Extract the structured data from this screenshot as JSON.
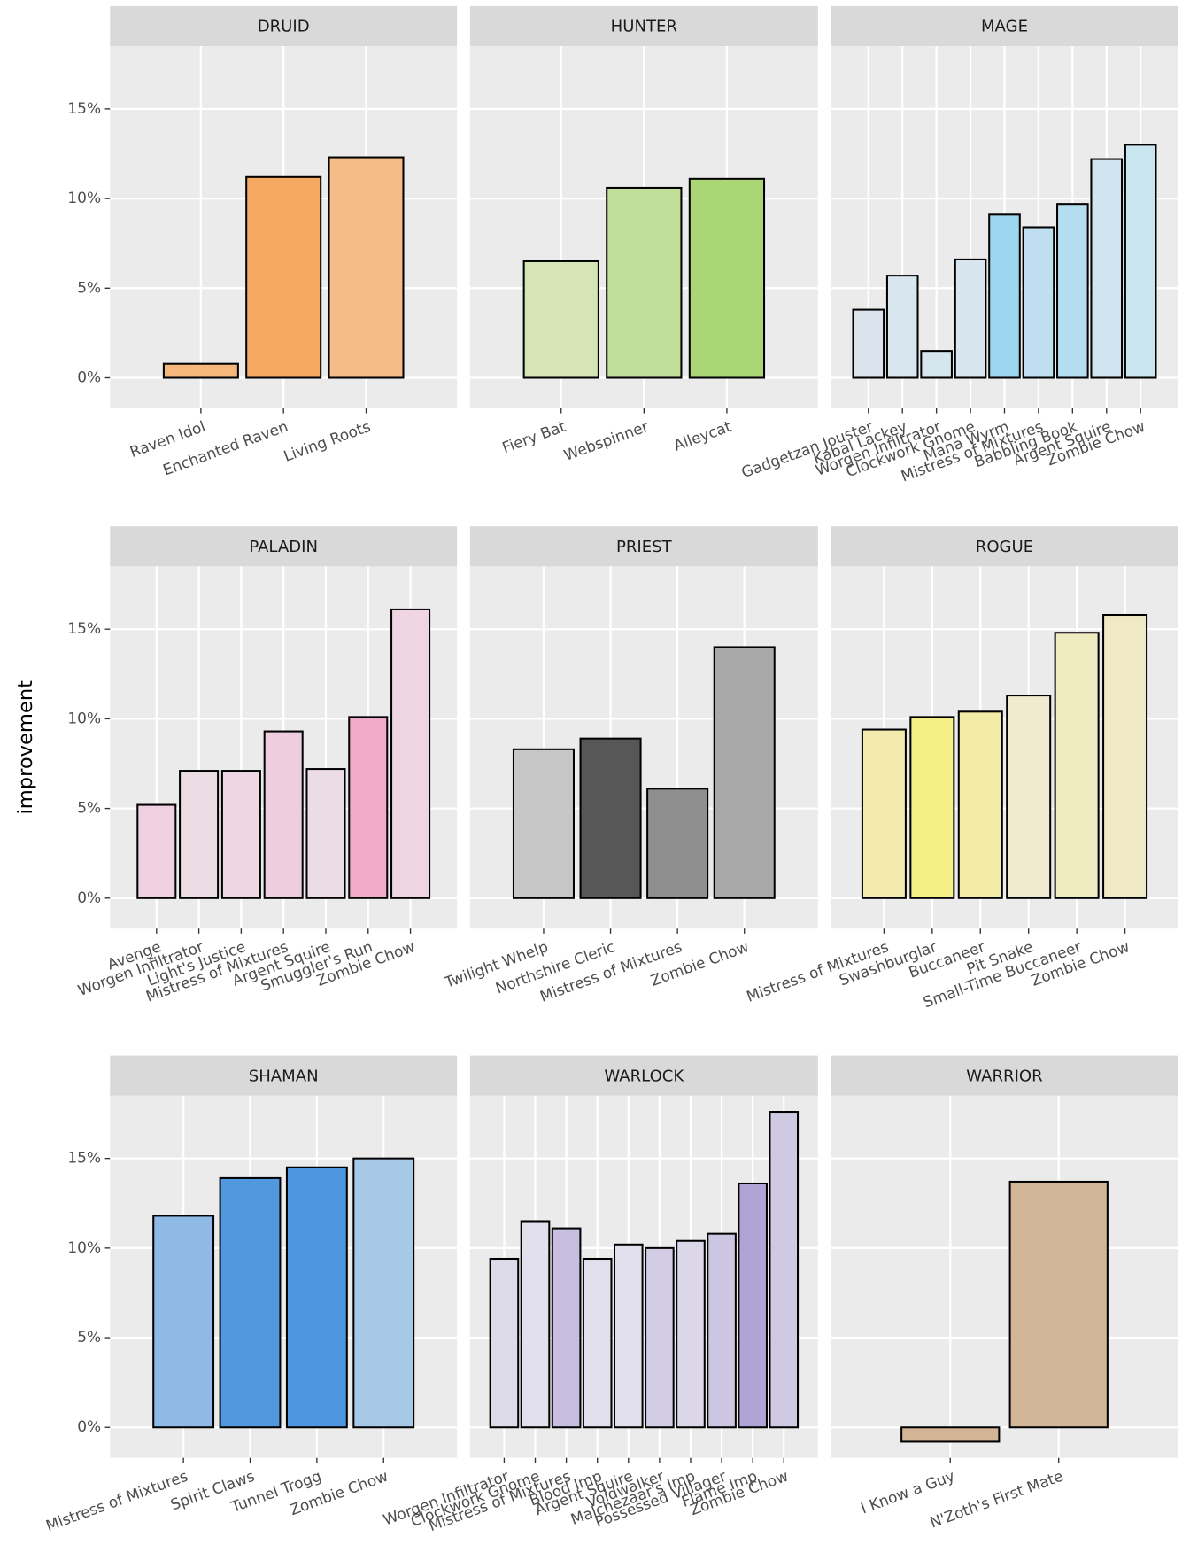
{
  "chart_data": [
    {
      "type": "bar",
      "title": "DRUID",
      "categories": [
        "Raven Idol",
        "Enchanted Raven",
        "Living Roots"
      ],
      "values": [
        0.78,
        11.2,
        12.3
      ],
      "colors": [
        "#f5b77c",
        "#f5a862",
        "#f4bc87"
      ],
      "ylim": [
        -1.7,
        18.5
      ],
      "yticks": [
        {
          "value": 0,
          "label": "0%"
        },
        {
          "value": 5,
          "label": "5%"
        },
        {
          "value": 10,
          "label": "10%"
        },
        {
          "value": 15,
          "label": "15%"
        }
      ],
      "grid": true
    },
    {
      "type": "bar",
      "title": "HUNTER",
      "categories": [
        "Fiery Bat",
        "Webspinner",
        "Alleycat"
      ],
      "values": [
        6.5,
        10.6,
        11.1
      ],
      "colors": [
        "#d6e5b6",
        "#c2df99",
        "#abd675"
      ],
      "ylim": [
        -1.7,
        18.5
      ],
      "yticks": [
        {
          "value": 0,
          "label": "0%"
        },
        {
          "value": 5,
          "label": "5%"
        },
        {
          "value": 10,
          "label": "10%"
        },
        {
          "value": 15,
          "label": "15%"
        }
      ],
      "grid": true
    },
    {
      "type": "bar",
      "title": "MAGE",
      "categories": [
        "Gadgetzan Jouster",
        "Kabal Lackey",
        "Worgen Infiltrator",
        "Clockwork Gnome",
        "Mana Wyrm",
        "Mistress of Mixtures",
        "Babbling Book",
        "Argent Squire",
        "Zombie Chow"
      ],
      "values": [
        3.8,
        5.7,
        1.5,
        6.6,
        9.1,
        8.4,
        9.7,
        12.2,
        13.0
      ],
      "colors": [
        "#dbe4ec",
        "#d8e6ee",
        "#d6e6ef",
        "#d7e6ee",
        "#9dd6ef",
        "#bfdff0",
        "#b5ddf0",
        "#cfe6f0",
        "#c8e5f0"
      ],
      "ylim": [
        -1.7,
        18.5
      ],
      "yticks": [
        {
          "value": 0,
          "label": "0%"
        },
        {
          "value": 5,
          "label": "5%"
        },
        {
          "value": 10,
          "label": "10%"
        },
        {
          "value": 15,
          "label": "15%"
        }
      ],
      "grid": true
    },
    {
      "type": "bar",
      "title": "PALADIN",
      "ylabel": "improvement",
      "categories": [
        "Avenge",
        "Worgen Infiltrator",
        "Light's Justice",
        "Mistress of Mixtures",
        "Argent Squire",
        "Smuggler's Run",
        "Zombie Chow"
      ],
      "values": [
        5.2,
        7.1,
        7.1,
        9.3,
        7.2,
        10.1,
        16.1
      ],
      "colors": [
        "#efcfe0",
        "#ecdde5",
        "#eed6e3",
        "#efcde0",
        "#ecdce5",
        "#f0abcb",
        "#efd4e2"
      ],
      "ylim": [
        -1.7,
        18.5
      ],
      "yticks": [
        {
          "value": 0,
          "label": "0%"
        },
        {
          "value": 5,
          "label": "5%"
        },
        {
          "value": 10,
          "label": "10%"
        },
        {
          "value": 15,
          "label": "15%"
        }
      ],
      "grid": true
    },
    {
      "type": "bar",
      "title": "PRIEST",
      "categories": [
        "Twilight Whelp",
        "Northshire Cleric",
        "Mistress of Mixtures",
        "Zombie Chow"
      ],
      "values": [
        8.3,
        8.9,
        6.1,
        14.0
      ],
      "colors": [
        "#c6c6c6",
        "#575757",
        "#8f8f8f",
        "#a8a8a8"
      ],
      "ylim": [
        -1.7,
        18.5
      ],
      "yticks": [
        {
          "value": 0,
          "label": "0%"
        },
        {
          "value": 5,
          "label": "5%"
        },
        {
          "value": 10,
          "label": "10%"
        },
        {
          "value": 15,
          "label": "15%"
        }
      ],
      "grid": true
    },
    {
      "type": "bar",
      "title": "ROGUE",
      "categories": [
        "Mistress of Mixtures",
        "Swashburglar",
        "Buccaneer",
        "Pit Snake",
        "Small-Time Buccaneer",
        "Zombie Chow"
      ],
      "values": [
        9.4,
        10.1,
        10.4,
        11.3,
        14.8,
        15.8
      ],
      "colors": [
        "#f3eaad",
        "#f5ef88",
        "#f3eca6",
        "#efead0",
        "#efebc0",
        "#efe9c5"
      ],
      "ylim": [
        -1.7,
        18.5
      ],
      "yticks": [
        {
          "value": 0,
          "label": "0%"
        },
        {
          "value": 5,
          "label": "5%"
        },
        {
          "value": 10,
          "label": "10%"
        },
        {
          "value": 15,
          "label": "15%"
        }
      ],
      "grid": true
    },
    {
      "type": "bar",
      "title": "SHAMAN",
      "categories": [
        "Mistress of Mixtures",
        "Spirit Claws",
        "Tunnel Trogg",
        "Zombie Chow"
      ],
      "values": [
        11.8,
        13.9,
        14.5,
        15.0
      ],
      "colors": [
        "#8fb9e6",
        "#5298df",
        "#4e97e0",
        "#a8c8e8"
      ],
      "ylim": [
        -1.7,
        18.5
      ],
      "yticks": [
        {
          "value": 0,
          "label": "0%"
        },
        {
          "value": 5,
          "label": "5%"
        },
        {
          "value": 10,
          "label": "10%"
        },
        {
          "value": 15,
          "label": "15%"
        }
      ],
      "grid": true
    },
    {
      "type": "bar",
      "title": "WARLOCK",
      "categories": [
        "Worgen Infiltrator",
        "Clockwork Gnome",
        "Mistress of Mixtures",
        "Blood Imp",
        "Argent Squire",
        "Voidwalker",
        "Malchezaar's Imp",
        "Possessed Villager",
        "Flame Imp",
        "Zombie Chow"
      ],
      "values": [
        9.4,
        11.5,
        11.1,
        9.4,
        10.2,
        10.0,
        10.4,
        10.8,
        13.6,
        17.6
      ],
      "colors": [
        "#dedbe9",
        "#e2e0ec",
        "#c8bfe0",
        "#e1dfeb",
        "#e2e0ec",
        "#d3cce5",
        "#dbd7e9",
        "#cdc6e3",
        "#b0a4d6",
        "#cfc9e4"
      ],
      "ylim": [
        -1.7,
        18.5
      ],
      "yticks": [
        {
          "value": 0,
          "label": "0%"
        },
        {
          "value": 5,
          "label": "5%"
        },
        {
          "value": 10,
          "label": "10%"
        },
        {
          "value": 15,
          "label": "15%"
        }
      ],
      "grid": true
    },
    {
      "type": "bar",
      "title": "WARRIOR",
      "categories": [
        "I Know a Guy",
        "N'Zoth's First Mate"
      ],
      "values": [
        -0.8,
        13.7
      ],
      "colors": [
        "#d3b595",
        "#d3b697"
      ],
      "ylim": [
        -1.7,
        18.5
      ],
      "yticks": [
        {
          "value": 0,
          "label": "0%"
        },
        {
          "value": 5,
          "label": "5%"
        },
        {
          "value": 10,
          "label": "10%"
        },
        {
          "value": 15,
          "label": "15%"
        }
      ],
      "grid": true
    }
  ]
}
